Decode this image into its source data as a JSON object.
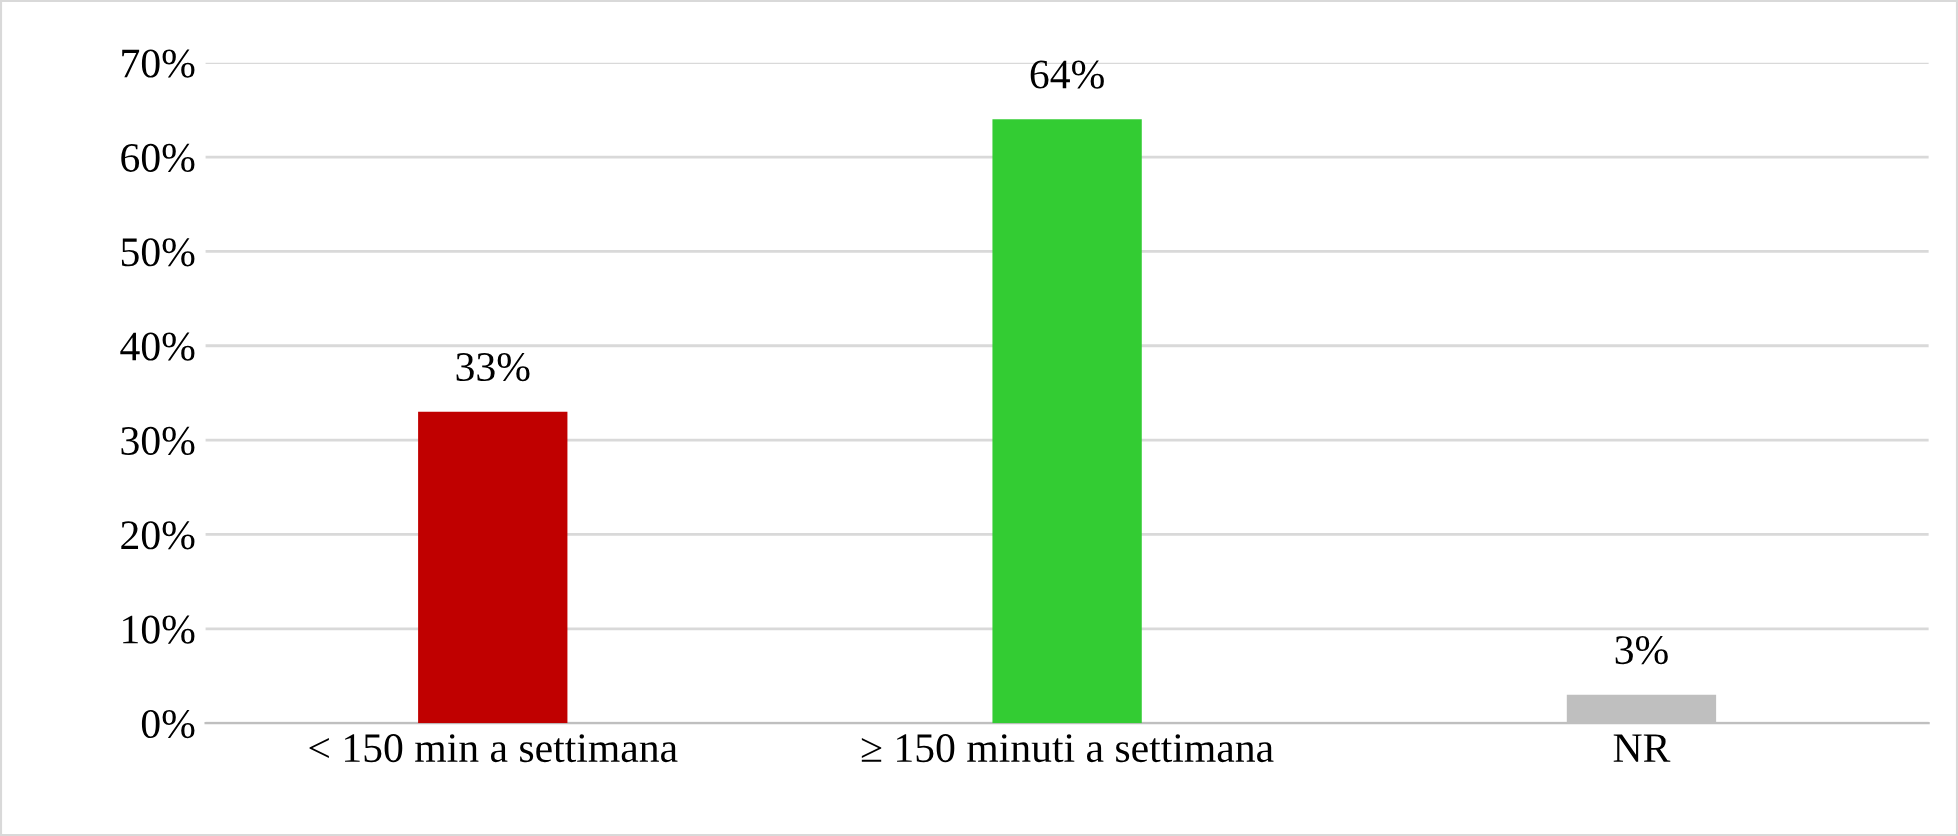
{
  "chart_data": {
    "type": "bar",
    "categories": [
      "< 150 min a settimana",
      "≥ 150 minuti a settimana",
      "NR"
    ],
    "values": [
      33,
      64,
      3
    ],
    "colors": [
      "#c00000",
      "#33cc33",
      "#bfbfbf"
    ],
    "value_labels": [
      "33%",
      "64%",
      "3%"
    ],
    "ylim": [
      0,
      70
    ],
    "yticks": [
      {
        "value": 0,
        "label": "0%"
      },
      {
        "value": 10,
        "label": "10%"
      },
      {
        "value": 20,
        "label": "20%"
      },
      {
        "value": 30,
        "label": "30%"
      },
      {
        "value": 40,
        "label": "40%"
      },
      {
        "value": 50,
        "label": "50%"
      },
      {
        "value": 60,
        "label": "60%"
      },
      {
        "value": 70,
        "label": "70%"
      }
    ],
    "grid": "y",
    "legend": false
  }
}
